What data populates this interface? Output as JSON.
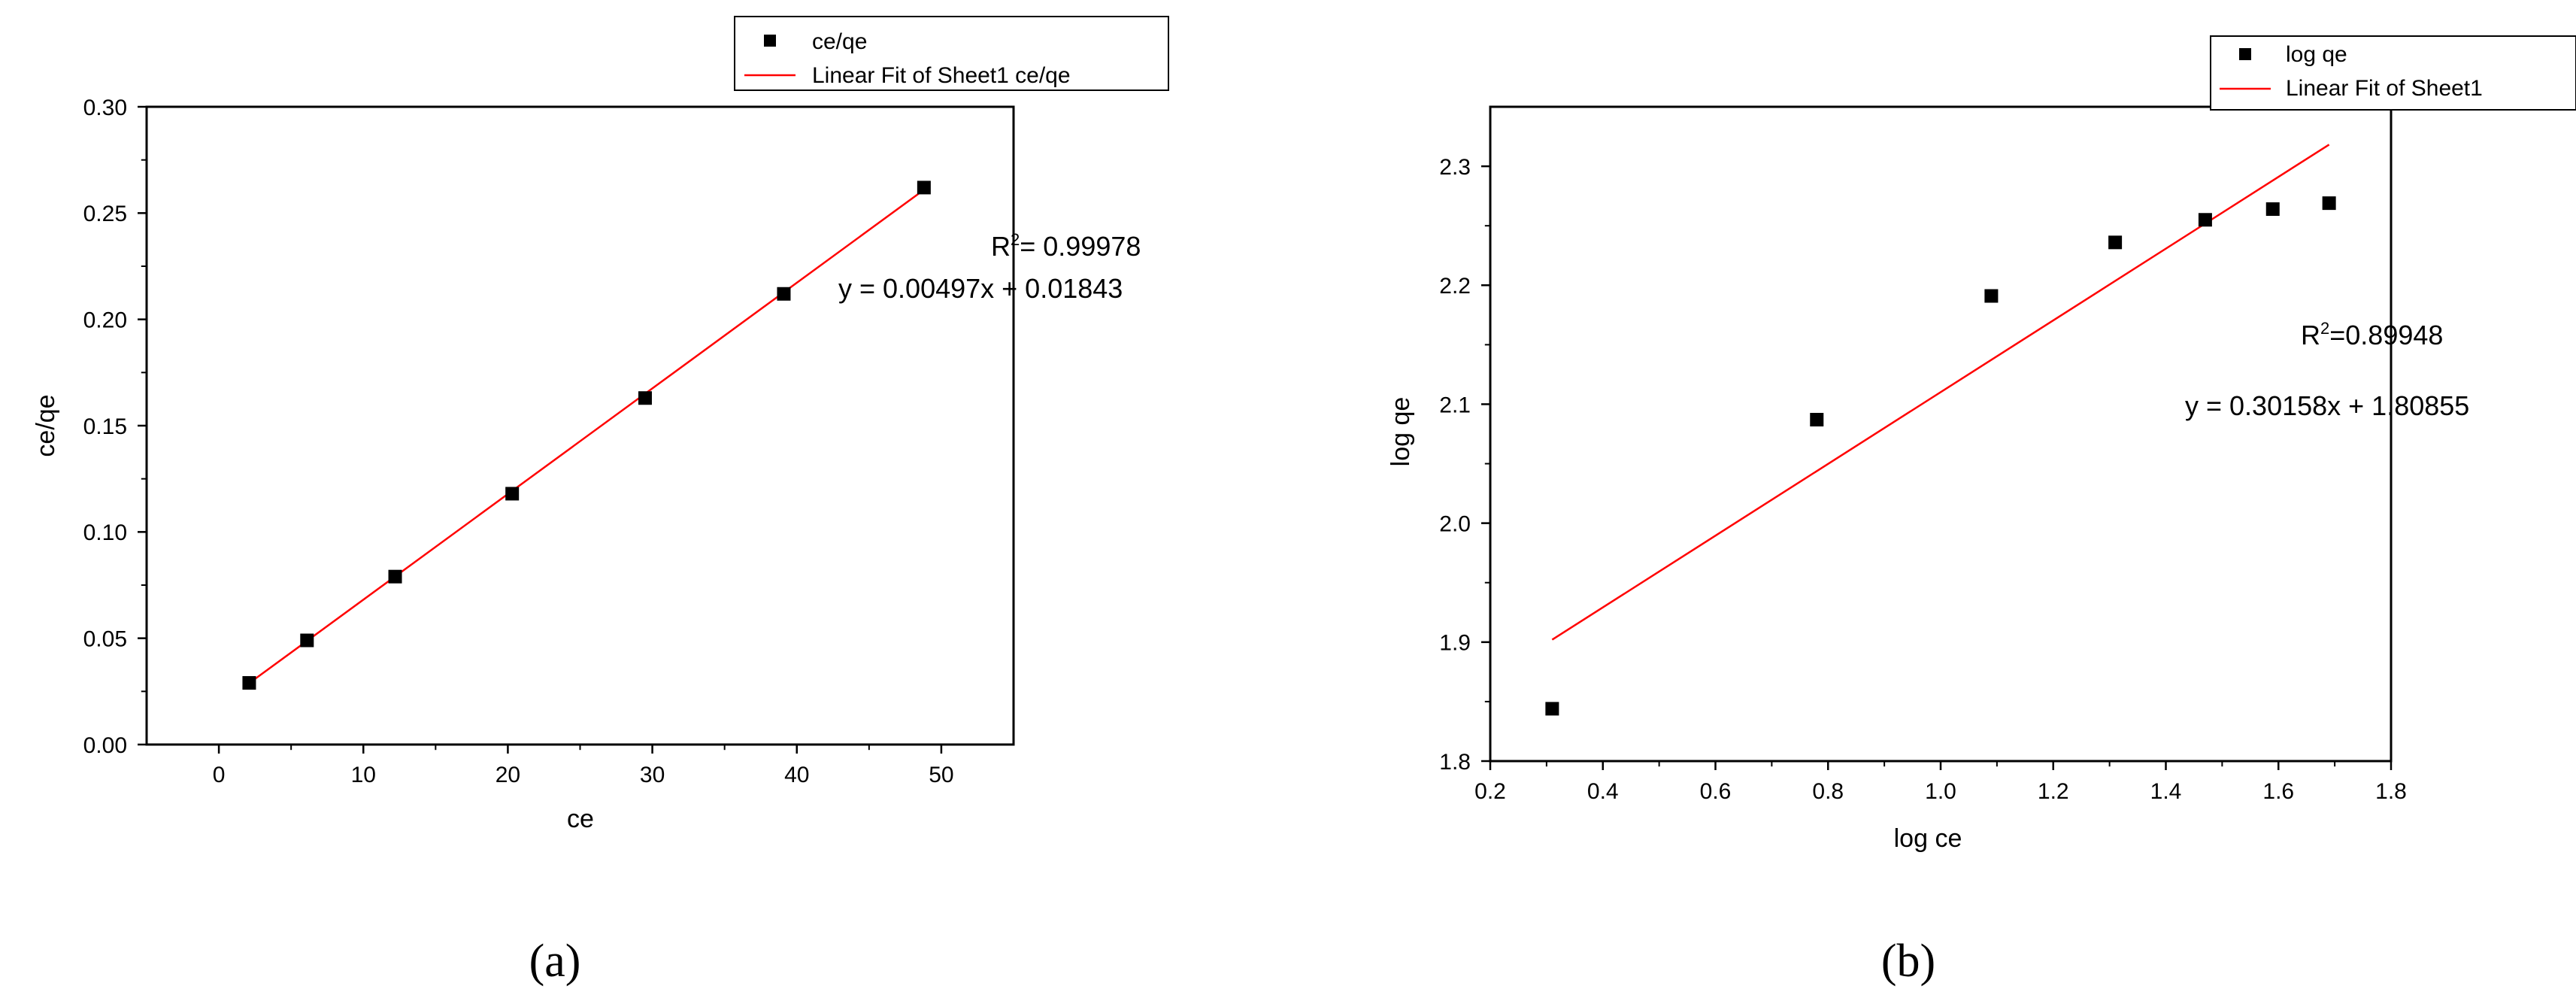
{
  "chart_data": [
    {
      "type": "scatter",
      "panel_label": "(a)",
      "xlabel": "ce",
      "ylabel": "ce/qe",
      "xlim": [
        -5,
        55
      ],
      "ylim": [
        0,
        0.3
      ],
      "xticks": [
        "0",
        "10",
        "20",
        "30",
        "40",
        "50"
      ],
      "xtick_values": [
        0,
        10,
        20,
        30,
        40,
        50
      ],
      "yticks": [
        "0.00",
        "0.05",
        "0.10",
        "0.15",
        "0.20",
        "0.25",
        "0.30"
      ],
      "ytick_values": [
        0,
        0.05,
        0.1,
        0.15,
        0.2,
        0.25,
        0.3
      ],
      "series": [
        {
          "name": "ce/qe",
          "marker": "square",
          "color": "#000000",
          "x": [
            2.1,
            6.1,
            12.2,
            20.3,
            29.5,
            39.1,
            48.8
          ],
          "y": [
            0.029,
            0.049,
            0.079,
            0.118,
            0.163,
            0.212,
            0.262
          ]
        },
        {
          "name": "Linear Fit of Sheet1 ce/qe",
          "kind": "fit-line",
          "color": "#ff0000",
          "slope": 0.00497,
          "intercept": 0.01843,
          "x_range": [
            2.1,
            48.8
          ]
        }
      ],
      "annotations": [
        "R",
        "2",
        "= 0.99978",
        "y = 0.00497x + 0.01843"
      ],
      "legend_position": "top-right"
    },
    {
      "type": "scatter",
      "panel_label": "(b)",
      "xlabel": "log ce",
      "ylabel": "log qe",
      "xlim": [
        0.2,
        1.8
      ],
      "ylim": [
        1.8,
        2.35
      ],
      "xticks": [
        "0.2",
        "0.4",
        "0.6",
        "0.8",
        "1.0",
        "1.2",
        "1.4",
        "1.6",
        "1.8"
      ],
      "xtick_values": [
        0.2,
        0.4,
        0.6,
        0.8,
        1.0,
        1.2,
        1.4,
        1.6,
        1.8
      ],
      "yticks": [
        "1.8",
        "1.9",
        "2.0",
        "2.1",
        "2.2",
        "2.3"
      ],
      "ytick_values": [
        1.8,
        1.9,
        2.0,
        2.1,
        2.2,
        2.3
      ],
      "series": [
        {
          "name": "log qe",
          "marker": "square",
          "color": "#000000",
          "x": [
            0.31,
            0.78,
            1.09,
            1.31,
            1.47,
            1.59,
            1.69
          ],
          "y": [
            1.844,
            2.087,
            2.191,
            2.236,
            2.255,
            2.264,
            2.269
          ]
        },
        {
          "name": "Linear Fit of Sheet1",
          "kind": "fit-line",
          "color": "#ff0000",
          "slope": 0.30158,
          "intercept": 1.80855,
          "x_range": [
            0.31,
            1.69
          ]
        }
      ],
      "annotations": [
        "R",
        "2",
        "=0.89948",
        "y = 0.30158x + 1.80855"
      ],
      "legend_position": "top-right"
    }
  ]
}
